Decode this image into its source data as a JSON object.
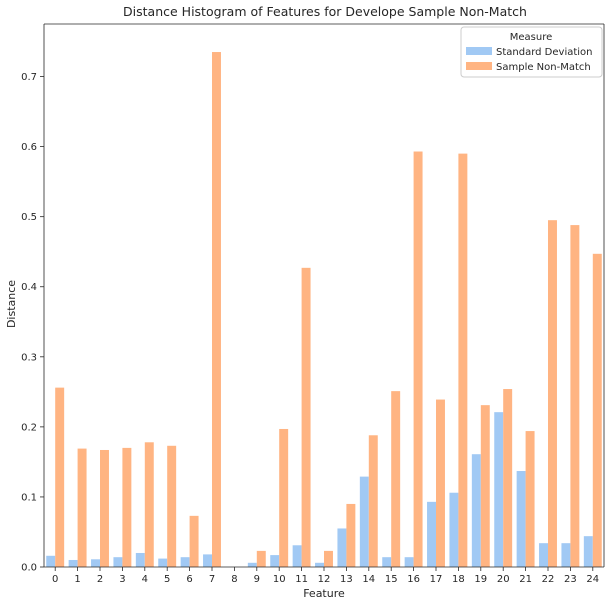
{
  "chart_data": {
    "type": "bar",
    "title": "Distance Histogram of Features for Develope Sample Non-Match",
    "xlabel": "Feature",
    "ylabel": "Distance",
    "ylim": [
      0,
      0.775
    ],
    "yticks": [
      0.0,
      0.1,
      0.2,
      0.3,
      0.4,
      0.5,
      0.6,
      0.7
    ],
    "categories": [
      "0",
      "1",
      "2",
      "3",
      "4",
      "5",
      "6",
      "7",
      "8",
      "9",
      "10",
      "11",
      "12",
      "13",
      "14",
      "15",
      "16",
      "17",
      "18",
      "19",
      "20",
      "21",
      "22",
      "23",
      "24"
    ],
    "legend": {
      "title": "Measure",
      "placement": "top-right"
    },
    "series": [
      {
        "name": "Standard Deviation",
        "color": "#a1c9f4",
        "values": [
          0.016,
          0.01,
          0.011,
          0.014,
          0.02,
          0.012,
          0.014,
          0.018,
          0.0,
          0.006,
          0.017,
          0.031,
          0.006,
          0.055,
          0.129,
          0.014,
          0.014,
          0.093,
          0.106,
          0.161,
          0.221,
          0.137,
          0.034,
          0.034,
          0.044
        ]
      },
      {
        "name": "Sample Non-Match",
        "color": "#ffb482",
        "values": [
          0.256,
          0.169,
          0.167,
          0.17,
          0.178,
          0.173,
          0.073,
          0.735,
          0.0,
          0.023,
          0.197,
          0.427,
          0.023,
          0.09,
          0.188,
          0.251,
          0.593,
          0.239,
          0.59,
          0.231,
          0.254,
          0.194,
          0.495,
          0.488,
          0.447
        ]
      }
    ]
  }
}
